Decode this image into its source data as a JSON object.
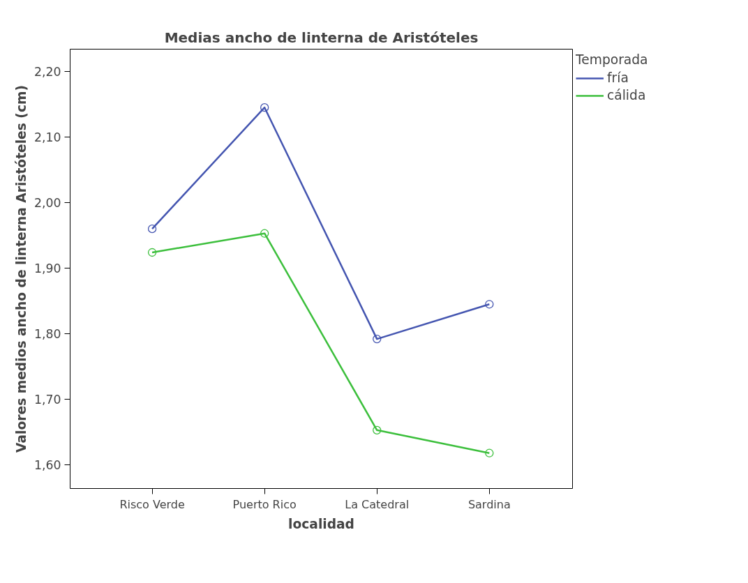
{
  "chart_data": {
    "type": "line",
    "title": "Medias ancho de linterna de Aristóteles",
    "xlabel": "localidad",
    "ylabel": "Valores medios ancho de linterna Aristóteles (cm)",
    "legend_title": "Temporada",
    "categories": [
      "Risco Verde",
      "Puerto Rico",
      "La Catedral",
      "Sardina"
    ],
    "series": [
      {
        "name": "fría",
        "color": "#4455b0",
        "values": [
          1.96,
          2.145,
          1.792,
          1.845
        ]
      },
      {
        "name": "cálida",
        "color": "#3cbf3c",
        "values": [
          1.924,
          1.953,
          1.653,
          1.618
        ]
      }
    ],
    "ylim": [
      1.564,
      2.234
    ],
    "yticks": [
      {
        "value": 1.6,
        "label": "1,60"
      },
      {
        "value": 1.7,
        "label": "1,70"
      },
      {
        "value": 1.8,
        "label": "1,80"
      },
      {
        "value": 1.9,
        "label": "1,90"
      },
      {
        "value": 2.0,
        "label": "2,00"
      },
      {
        "value": 2.1,
        "label": "2,10"
      },
      {
        "value": 2.2,
        "label": "2,20"
      }
    ],
    "grid": false,
    "legend": "top right",
    "marker": "circle",
    "line_style": "solid"
  }
}
